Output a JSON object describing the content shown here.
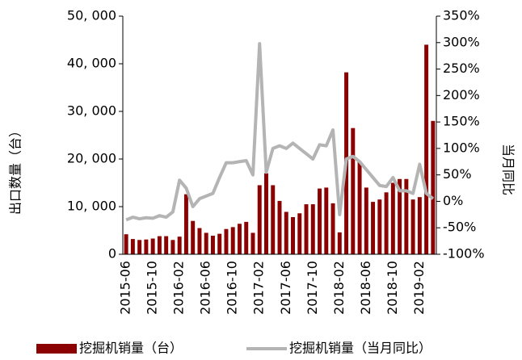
{
  "chart_data": {
    "type": "bar_line",
    "y_label": "出口数量（台）",
    "y2_label": "当月同比",
    "categories": [
      "2015-06",
      null,
      null,
      null,
      "2015-10",
      null,
      null,
      null,
      "2016-02",
      null,
      null,
      null,
      "2016-06",
      null,
      null,
      null,
      "2016-10",
      null,
      null,
      null,
      "2017-02",
      null,
      null,
      null,
      "2017-06",
      null,
      null,
      null,
      "2017-10",
      null,
      null,
      null,
      "2018-02",
      null,
      null,
      null,
      "2018-06",
      null,
      null,
      null,
      "2018-10",
      null,
      null,
      null,
      "2019-02",
      null,
      null
    ],
    "series": [
      {
        "name": "挖掘机销量（台）",
        "type": "bar",
        "color": "#8b0000",
        "values": [
          4200,
          3200,
          3000,
          3100,
          3300,
          3800,
          3800,
          3000,
          3700,
          12600,
          7000,
          5500,
          4500,
          3900,
          4300,
          5300,
          5700,
          6400,
          6800,
          4500,
          14500,
          17000,
          14500,
          11200,
          8900,
          7800,
          8600,
          10500,
          10500,
          13800,
          14000,
          10700,
          4600,
          38200,
          26500,
          19500,
          14000,
          11000,
          11500,
          13000,
          15000,
          15800,
          15800,
          11500,
          12000,
          44000,
          28000
        ]
      },
      {
        "name": "挖掘机销量（当月同比）",
        "type": "line",
        "axis": "y2",
        "color": "#b4b4b4",
        "values": [
          -35,
          -30,
          -33,
          -31,
          -32,
          -27,
          -30,
          -20,
          40,
          25,
          -10,
          5,
          10,
          15,
          45,
          73,
          73,
          75,
          77,
          50,
          298,
          55,
          100,
          105,
          100,
          110,
          100,
          90,
          80,
          107,
          105,
          135,
          -25,
          80,
          85,
          75,
          60,
          45,
          30,
          28,
          45,
          20,
          20,
          15,
          70,
          15,
          5
        ]
      }
    ],
    "ylim": [
      0,
      50000
    ],
    "yticks": [
      0,
      {
        "value": 10000,
        "label": "10, 000"
      },
      {
        "value": 20000,
        "label": "20, 000"
      },
      {
        "value": 30000,
        "label": "30, 000"
      },
      {
        "value": 40000,
        "label": "40, 000"
      },
      {
        "value": 50000,
        "label": "50, 000"
      }
    ],
    "y2lim": [
      -100,
      350
    ],
    "y2ticks": [
      {
        "value": -100,
        "label": "-100%"
      },
      {
        "value": -50,
        "label": "-50%"
      },
      {
        "value": 0,
        "label": "0%"
      },
      {
        "value": 50,
        "label": "50%"
      },
      {
        "value": 100,
        "label": "100%"
      },
      {
        "value": 150,
        "label": "150%"
      },
      {
        "value": 200,
        "label": "200%"
      },
      {
        "value": 250,
        "label": "250%"
      },
      {
        "value": 300,
        "label": "300%"
      },
      {
        "value": 350,
        "label": "350%"
      }
    ],
    "legend": "bottom"
  }
}
